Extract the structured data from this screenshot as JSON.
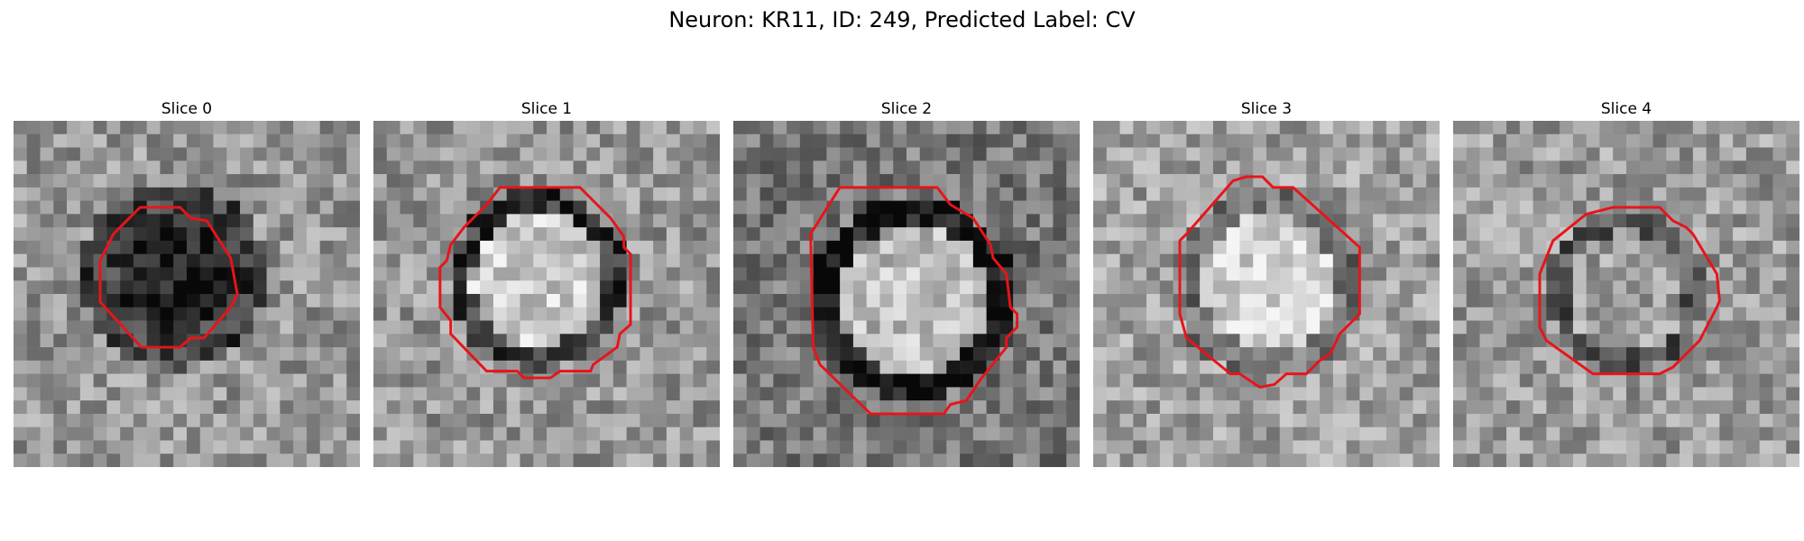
{
  "figure": {
    "title": "Neuron: KR11, ID: 249, Predicted Label: CV"
  },
  "colors": {
    "outline": "#e8141a",
    "background": "#ffffff"
  },
  "slices": [
    {
      "title": "Slice 0",
      "appearance": "dark-blob"
    },
    {
      "title": "Slice 1",
      "appearance": "bright-center-dark-ring"
    },
    {
      "title": "Slice 2",
      "appearance": "bright-center-thick-dark-ring"
    },
    {
      "title": "Slice 3",
      "appearance": "bright-center-faint-ring"
    },
    {
      "title": "Slice 4",
      "appearance": "faint-ring"
    }
  ]
}
